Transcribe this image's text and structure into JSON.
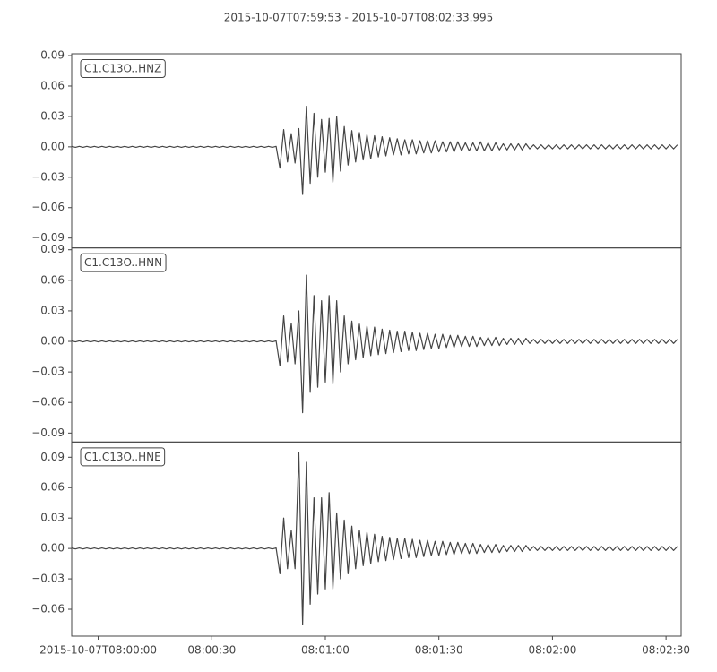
{
  "chart_data": {
    "type": "line",
    "title": "2015-10-07T07:59:53  -  2015-10-07T08:02:33.995",
    "xlim": [
      "2015-10-07T07:59:53",
      "2015-10-07T08:02:33.995"
    ],
    "xticks": [
      {
        "value": "2015-10-07T08:00:00",
        "label": "2015-10-07T08:00:00"
      },
      {
        "value": "2015-10-07T08:00:30",
        "label": "08:00:30"
      },
      {
        "value": "2015-10-07T08:01:00",
        "label": "08:01:00"
      },
      {
        "value": "2015-10-07T08:01:30",
        "label": "08:01:30"
      },
      {
        "value": "2015-10-07T08:02:00",
        "label": "08:02:00"
      },
      {
        "value": "2015-10-07T08:02:30",
        "label": "08:02:30"
      }
    ],
    "x": [
      "07:59:53",
      "07:59:54",
      "07:59:55",
      "07:59:56",
      "07:59:57",
      "07:59:58",
      "07:59:59",
      "08:00:00",
      "08:00:01",
      "08:00:02",
      "08:00:03",
      "08:00:04",
      "08:00:05",
      "08:00:06",
      "08:00:07",
      "08:00:08",
      "08:00:09",
      "08:00:10",
      "08:00:11",
      "08:00:12",
      "08:00:13",
      "08:00:14",
      "08:00:15",
      "08:00:16",
      "08:00:17",
      "08:00:18",
      "08:00:19",
      "08:00:20",
      "08:00:21",
      "08:00:22",
      "08:00:23",
      "08:00:24",
      "08:00:25",
      "08:00:26",
      "08:00:27",
      "08:00:28",
      "08:00:29",
      "08:00:30",
      "08:00:31",
      "08:00:32",
      "08:00:33",
      "08:00:34",
      "08:00:35",
      "08:00:36",
      "08:00:37",
      "08:00:38",
      "08:00:39",
      "08:00:40",
      "08:00:41",
      "08:00:42",
      "08:00:43",
      "08:00:44",
      "08:00:45",
      "08:00:46",
      "08:00:47",
      "08:00:48",
      "08:00:49",
      "08:00:50",
      "08:00:51",
      "08:00:52",
      "08:00:53",
      "08:00:54",
      "08:00:55",
      "08:00:56",
      "08:00:57",
      "08:00:58",
      "08:00:59",
      "08:01:00",
      "08:01:01",
      "08:01:02",
      "08:01:03",
      "08:01:04",
      "08:01:05",
      "08:01:06",
      "08:01:07",
      "08:01:08",
      "08:01:09",
      "08:01:10",
      "08:01:11",
      "08:01:12",
      "08:01:13",
      "08:01:14",
      "08:01:15",
      "08:01:16",
      "08:01:17",
      "08:01:18",
      "08:01:19",
      "08:01:20",
      "08:01:21",
      "08:01:22",
      "08:01:23",
      "08:01:24",
      "08:01:25",
      "08:01:26",
      "08:01:27",
      "08:01:28",
      "08:01:29",
      "08:01:30",
      "08:01:31",
      "08:01:32",
      "08:01:33",
      "08:01:34",
      "08:01:35",
      "08:01:36",
      "08:01:37",
      "08:01:38",
      "08:01:39",
      "08:01:40",
      "08:01:41",
      "08:01:42",
      "08:01:43",
      "08:01:44",
      "08:01:45",
      "08:01:46",
      "08:01:47",
      "08:01:48",
      "08:01:49",
      "08:01:50",
      "08:01:51",
      "08:01:52",
      "08:01:53",
      "08:01:54",
      "08:01:55",
      "08:01:56",
      "08:01:57",
      "08:01:58",
      "08:01:59",
      "08:02:00",
      "08:02:01",
      "08:02:02",
      "08:02:03",
      "08:02:04",
      "08:02:05",
      "08:02:06",
      "08:02:07",
      "08:02:08",
      "08:02:09",
      "08:02:10",
      "08:02:11",
      "08:02:12",
      "08:02:13",
      "08:02:14",
      "08:02:15",
      "08:02:16",
      "08:02:17",
      "08:02:18",
      "08:02:19",
      "08:02:20",
      "08:02:21",
      "08:02:22",
      "08:02:23",
      "08:02:24",
      "08:02:25",
      "08:02:26",
      "08:02:27",
      "08:02:28",
      "08:02:29",
      "08:02:30",
      "08:02:31",
      "08:02:32",
      "08:02:33"
    ],
    "series": [
      {
        "name": "C1.C13O..HNZ",
        "color": "#444444",
        "ylim": [
          -0.0997,
          0.0918
        ],
        "yticks": [
          {
            "value": -0.09,
            "label": "−0.09"
          },
          {
            "value": -0.06,
            "label": "−0.06"
          },
          {
            "value": -0.03,
            "label": "−0.03"
          },
          {
            "value": 0,
            "label": "0.00"
          },
          0.03,
          0.06,
          0.09
        ],
        "values": [
          0.0005,
          -0.0005,
          0.0005,
          -0.0005,
          0.0005,
          -0.0005,
          0.0005,
          -0.0005,
          0.0005,
          -0.0005,
          0.0005,
          -0.0005,
          0.0005,
          -0.0005,
          0.0005,
          -0.0005,
          0.0005,
          -0.0005,
          0.0005,
          -0.0005,
          0.0005,
          -0.0005,
          0.0005,
          -0.0005,
          0.0005,
          -0.0005,
          0.0005,
          -0.0005,
          0.0005,
          -0.0005,
          0.0005,
          -0.0005,
          0.0005,
          -0.0005,
          0.0005,
          -0.0005,
          0.0005,
          -0.0005,
          0.0005,
          -0.0005,
          0.0005,
          -0.0005,
          0.0005,
          -0.0005,
          0.0005,
          -0.0005,
          0.0005,
          -0.0005,
          0.0005,
          -0.0005,
          0.0005,
          -0.0005,
          0.0005,
          -0.0005,
          0.0005,
          -0.021,
          0.017,
          -0.015,
          0.013,
          -0.016,
          0.018,
          -0.047,
          0.04,
          -0.036,
          0.033,
          -0.03,
          0.027,
          -0.025,
          0.028,
          -0.035,
          0.03,
          -0.024,
          0.02,
          -0.018,
          0.016,
          -0.015,
          0.014,
          -0.013,
          0.012,
          -0.012,
          0.011,
          -0.01,
          0.01,
          -0.009,
          0.009,
          -0.008,
          0.008,
          -0.008,
          0.007,
          -0.007,
          0.007,
          -0.007,
          0.006,
          -0.006,
          0.006,
          -0.006,
          0.006,
          -0.005,
          0.005,
          -0.005,
          0.005,
          -0.005,
          0.005,
          -0.004,
          0.004,
          -0.004,
          0.004,
          -0.004,
          0.005,
          -0.004,
          0.004,
          -0.004,
          0.004,
          -0.003,
          0.003,
          -0.003,
          0.003,
          -0.003,
          0.003,
          -0.003,
          0.003,
          -0.002,
          0.002,
          -0.002,
          0.002,
          -0.002,
          0.002,
          -0.002,
          0.002,
          -0.002,
          0.002,
          -0.002,
          0.002,
          -0.002,
          0.002,
          -0.002,
          0.002,
          -0.002,
          0.002,
          -0.002,
          0.002,
          -0.002,
          0.002,
          -0.002,
          0.002,
          -0.002,
          0.002,
          -0.002,
          0.002,
          -0.002,
          0.002,
          -0.002,
          0.002,
          -0.002,
          0.002,
          -0.002,
          0.002,
          -0.002,
          0.002,
          -0.002,
          0.002
        ]
      },
      {
        "name": "C1.C13O..HNN",
        "color": "#444444",
        "ylim": [
          -0.0988,
          0.0918
        ],
        "yticks": [
          {
            "value": -0.09,
            "label": "−0.09"
          },
          {
            "value": -0.06,
            "label": "−0.06"
          },
          {
            "value": -0.03,
            "label": "−0.03"
          },
          {
            "value": 0,
            "label": "0.00"
          },
          0.03,
          0.06,
          0.09
        ],
        "values": [
          0.0005,
          -0.0005,
          0.0005,
          -0.0005,
          0.0005,
          -0.0005,
          0.0005,
          -0.0005,
          0.0005,
          -0.0005,
          0.0005,
          -0.0005,
          0.0005,
          -0.0005,
          0.0005,
          -0.0005,
          0.0005,
          -0.0005,
          0.0005,
          -0.0005,
          0.0005,
          -0.0005,
          0.0005,
          -0.0005,
          0.0005,
          -0.0005,
          0.0005,
          -0.0005,
          0.0005,
          -0.0005,
          0.0005,
          -0.0005,
          0.0005,
          -0.0005,
          0.0005,
          -0.0005,
          0.0005,
          -0.0005,
          0.0005,
          -0.0005,
          0.0005,
          -0.0005,
          0.0005,
          -0.0005,
          0.0005,
          -0.0005,
          0.0005,
          -0.0005,
          0.0005,
          -0.0005,
          0.0005,
          -0.0005,
          0.0005,
          -0.0005,
          0.0005,
          -0.024,
          0.025,
          -0.02,
          0.018,
          -0.022,
          0.03,
          -0.07,
          0.065,
          -0.05,
          0.045,
          -0.045,
          0.04,
          -0.04,
          0.045,
          -0.042,
          0.04,
          -0.03,
          0.025,
          -0.022,
          0.02,
          -0.018,
          0.017,
          -0.016,
          0.015,
          -0.014,
          0.014,
          -0.013,
          0.012,
          -0.012,
          0.011,
          -0.011,
          0.01,
          -0.01,
          0.01,
          -0.009,
          0.009,
          -0.009,
          0.008,
          -0.008,
          0.008,
          -0.007,
          0.007,
          -0.007,
          0.007,
          -0.006,
          0.006,
          -0.006,
          0.006,
          -0.005,
          0.005,
          -0.005,
          0.005,
          -0.005,
          0.004,
          -0.004,
          0.004,
          -0.004,
          0.004,
          -0.004,
          0.003,
          -0.003,
          0.003,
          -0.003,
          0.003,
          -0.003,
          0.003,
          -0.002,
          0.002,
          -0.002,
          0.002,
          -0.002,
          0.002,
          -0.002,
          0.002,
          -0.002,
          0.002,
          -0.002,
          0.002,
          -0.002,
          0.002,
          -0.002,
          0.002,
          -0.002,
          0.002,
          -0.002,
          0.002,
          -0.002,
          0.002,
          -0.002,
          0.002,
          -0.002,
          0.002,
          -0.002,
          0.002,
          -0.002,
          0.002,
          -0.002,
          0.002,
          -0.002,
          0.002,
          -0.002,
          0.002,
          -0.002,
          0.002,
          -0.002,
          0.002
        ]
      },
      {
        "name": "C1.C13O..HNE",
        "color": "#444444",
        "ylim": [
          -0.0865,
          0.105
        ],
        "yticks": [
          {
            "value": -0.06,
            "label": "−0.06"
          },
          {
            "value": -0.03,
            "label": "−0.03"
          },
          {
            "value": 0,
            "label": "0.00"
          },
          0.03,
          0.06,
          0.09
        ],
        "values": [
          0.0005,
          -0.0005,
          0.0005,
          -0.0005,
          0.0005,
          -0.0005,
          0.0005,
          -0.0005,
          0.0005,
          -0.0005,
          0.0005,
          -0.0005,
          0.0005,
          -0.0005,
          0.0005,
          -0.0005,
          0.0005,
          -0.0005,
          0.0005,
          -0.0005,
          0.0005,
          -0.0005,
          0.0005,
          -0.0005,
          0.0005,
          -0.0005,
          0.0005,
          -0.0005,
          0.0005,
          -0.0005,
          0.0005,
          -0.0005,
          0.0005,
          -0.0005,
          0.0005,
          -0.0005,
          0.0005,
          -0.0005,
          0.0005,
          -0.0005,
          0.0005,
          -0.0005,
          0.0005,
          -0.0005,
          0.0005,
          -0.0005,
          0.0005,
          -0.0005,
          0.0005,
          -0.0005,
          0.0005,
          -0.0005,
          0.0005,
          -0.0005,
          0.0005,
          -0.025,
          0.03,
          -0.02,
          0.018,
          -0.02,
          0.095,
          -0.075,
          0.085,
          -0.055,
          0.05,
          -0.045,
          0.05,
          -0.04,
          0.055,
          -0.04,
          0.035,
          -0.03,
          0.028,
          -0.025,
          0.022,
          -0.02,
          0.018,
          -0.017,
          0.016,
          -0.015,
          0.014,
          -0.013,
          0.012,
          -0.012,
          0.011,
          -0.011,
          0.01,
          -0.01,
          0.01,
          -0.009,
          0.009,
          -0.009,
          0.008,
          -0.008,
          0.008,
          -0.007,
          0.007,
          -0.007,
          0.007,
          -0.006,
          0.006,
          -0.006,
          0.006,
          -0.005,
          0.005,
          -0.005,
          0.005,
          -0.005,
          0.004,
          -0.004,
          0.004,
          -0.004,
          0.004,
          -0.004,
          0.003,
          -0.003,
          0.003,
          -0.003,
          0.003,
          -0.003,
          0.003,
          -0.002,
          0.002,
          -0.002,
          0.002,
          -0.002,
          0.002,
          -0.002,
          0.002,
          -0.002,
          0.002,
          -0.002,
          0.002,
          -0.002,
          0.002,
          -0.002,
          0.002,
          -0.002,
          0.002,
          -0.002,
          0.002,
          -0.002,
          0.002,
          -0.002,
          0.002,
          -0.002,
          0.002,
          -0.002,
          0.002,
          -0.002,
          0.002,
          -0.002,
          0.002,
          -0.002,
          0.002,
          -0.002,
          0.002,
          -0.002,
          0.002,
          -0.002,
          0.002
        ]
      }
    ]
  }
}
